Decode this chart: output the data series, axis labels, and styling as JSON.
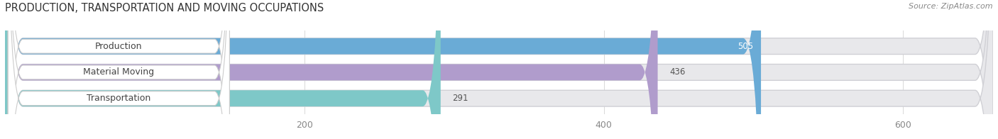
{
  "title": "PRODUCTION, TRANSPORTATION AND MOVING OCCUPATIONS",
  "source_text": "Source: ZipAtlas.com",
  "categories": [
    "Production",
    "Material Moving",
    "Transportation"
  ],
  "values": [
    505,
    436,
    291
  ],
  "bar_colors": [
    "#6aabd6",
    "#b09ccc",
    "#7ec8c8"
  ],
  "label_colors": [
    "white",
    "black",
    "black"
  ],
  "xlim": [
    0,
    660
  ],
  "xticks": [
    200,
    400,
    600
  ],
  "bar_background_color": "#e8e8eb",
  "title_fontsize": 10.5,
  "source_fontsize": 8,
  "tick_fontsize": 9,
  "bar_label_fontsize": 8.5,
  "category_fontsize": 9,
  "bar_height": 0.62,
  "figsize": [
    14.06,
    1.96
  ],
  "dpi": 100
}
